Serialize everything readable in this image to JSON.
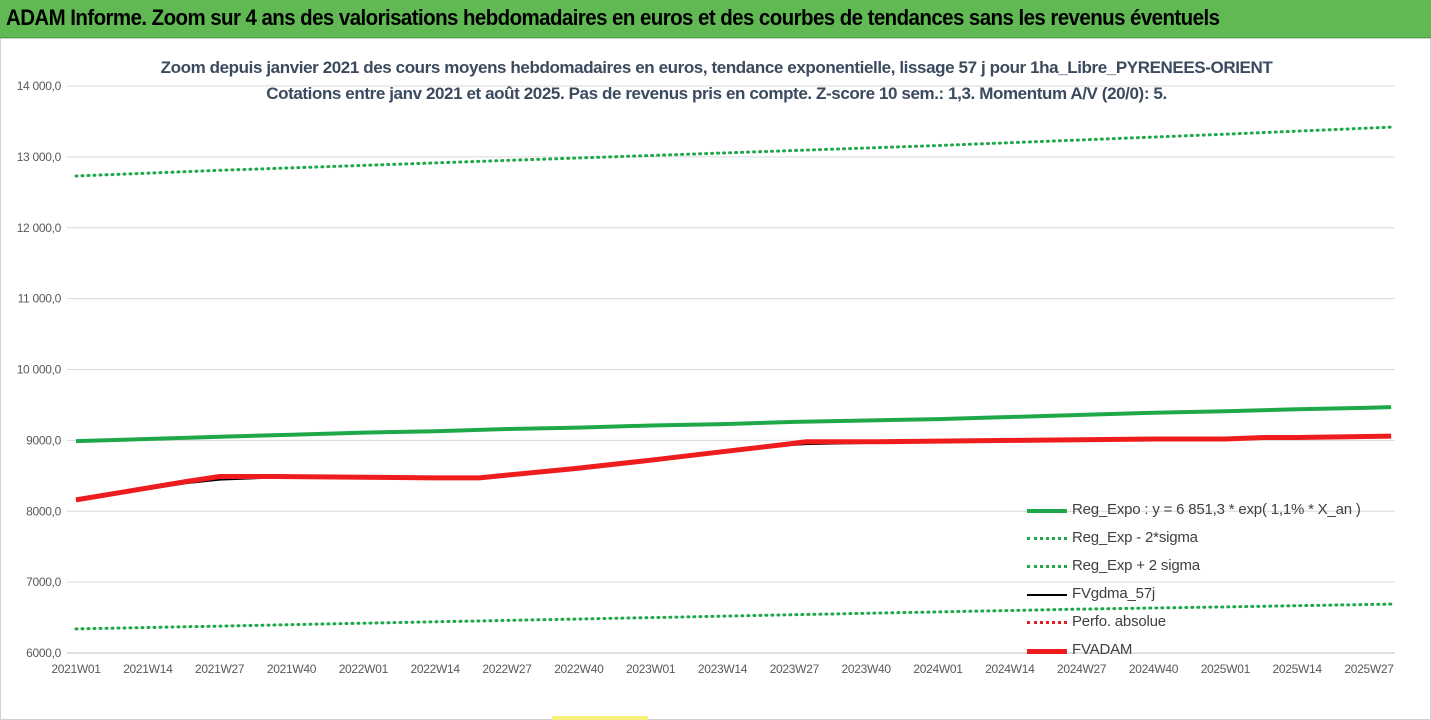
{
  "banner_title": "ADAM Informe. Zoom sur 4 ans des valorisations hebdomadaires en euros et des courbes de tendances sans les revenus éventuels",
  "colors": {
    "banner_bg": "#61b954",
    "trend": "#1fa84a",
    "adam": "#ee1c1c",
    "fvgdma": "#000000",
    "perfo": "#e02020",
    "title_text": "#3b4a5e"
  },
  "chart_data": {
    "type": "line",
    "title": "Zoom depuis janvier 2021 des cours moyens hebdomadaires en euros, tendance exponentielle, lissage 57 j pour 1ha_Libre_PYRENEES-ORIENT",
    "subtitle": "Cotations entre janv 2021 et août 2025.  Pas de revenus pris en compte. Z-score 10 sem.: 1,3. Momentum A/V (20/0): 5.",
    "xlabel": "",
    "ylabel": "",
    "ylim": [
      6000,
      14000
    ],
    "grid": true,
    "legend_position": "right",
    "y_ticks": [
      "6000,0",
      "7000,0",
      "8000,0",
      "9000,0",
      "10 000,0",
      "11 000,0",
      "12 000,0",
      "13 000,0",
      "14 000,0"
    ],
    "x_ticks": [
      "2021W01",
      "2021W14",
      "2021W27",
      "2021W40",
      "2022W01",
      "2022W14",
      "2022W27",
      "2022W40",
      "2023W01",
      "2023W14",
      "2023W27",
      "2023W40",
      "2024W01",
      "2024W14",
      "2024W27",
      "2024W40",
      "2025W01",
      "2025W14",
      "2025W27"
    ],
    "series": [
      {
        "name": "Reg_Expo : y = 6 851,3 * exp( 1,1% *  X_an )",
        "style": "solid-thick",
        "color": "#1fa84a",
        "points": [
          [
            0,
            8990
          ],
          [
            13,
            9020
          ],
          [
            26,
            9050
          ],
          [
            39,
            9080
          ],
          [
            52,
            9110
          ],
          [
            65,
            9130
          ],
          [
            78,
            9160
          ],
          [
            91,
            9180
          ],
          [
            104,
            9210
          ],
          [
            117,
            9230
          ],
          [
            130,
            9260
          ],
          [
            143,
            9280
          ],
          [
            156,
            9300
          ],
          [
            169,
            9330
          ],
          [
            182,
            9360
          ],
          [
            195,
            9390
          ],
          [
            208,
            9410
          ],
          [
            221,
            9440
          ],
          [
            234,
            9460
          ],
          [
            238,
            9470
          ]
        ]
      },
      {
        "name": "Reg_Exp - 2*sigma",
        "style": "dotted",
        "color": "#1fa84a",
        "points": [
          [
            0,
            6340
          ],
          [
            26,
            6380
          ],
          [
            52,
            6420
          ],
          [
            78,
            6460
          ],
          [
            104,
            6500
          ],
          [
            130,
            6540
          ],
          [
            156,
            6580
          ],
          [
            182,
            6620
          ],
          [
            208,
            6650
          ],
          [
            238,
            6690
          ]
        ]
      },
      {
        "name": "Reg_Exp + 2 sigma",
        "style": "dotted",
        "color": "#1fa84a",
        "points": [
          [
            0,
            12730
          ],
          [
            26,
            12810
          ],
          [
            52,
            12880
          ],
          [
            78,
            12950
          ],
          [
            104,
            13020
          ],
          [
            130,
            13090
          ],
          [
            156,
            13160
          ],
          [
            182,
            13240
          ],
          [
            208,
            13320
          ],
          [
            238,
            13420
          ]
        ]
      },
      {
        "name": "FVgdma_57j",
        "style": "solid",
        "color": "#000000",
        "points": [
          [
            0,
            8160
          ],
          [
            10,
            8280
          ],
          [
            20,
            8400
          ],
          [
            26,
            8450
          ],
          [
            36,
            8480
          ],
          [
            52,
            8480
          ],
          [
            65,
            8460
          ],
          [
            73,
            8480
          ],
          [
            78,
            8510
          ],
          [
            90,
            8600
          ],
          [
            104,
            8720
          ],
          [
            117,
            8840
          ],
          [
            128,
            8930
          ],
          [
            132,
            8950
          ],
          [
            145,
            8970
          ],
          [
            156,
            8990
          ],
          [
            169,
            9000
          ],
          [
            182,
            9010
          ],
          [
            195,
            9020
          ],
          [
            208,
            9020
          ],
          [
            221,
            9030
          ],
          [
            238,
            9050
          ]
        ]
      },
      {
        "name": "Perfo. absolue",
        "style": "dotted",
        "color": "#e02020",
        "points": []
      },
      {
        "name": "FVADAM",
        "style": "solid-thick",
        "color": "#ee1c1c",
        "points": [
          [
            0,
            8160
          ],
          [
            10,
            8290
          ],
          [
            20,
            8420
          ],
          [
            26,
            8490
          ],
          [
            36,
            8490
          ],
          [
            52,
            8480
          ],
          [
            65,
            8470
          ],
          [
            73,
            8470
          ],
          [
            78,
            8510
          ],
          [
            90,
            8600
          ],
          [
            104,
            8720
          ],
          [
            117,
            8840
          ],
          [
            128,
            8940
          ],
          [
            132,
            8980
          ],
          [
            145,
            8980
          ],
          [
            156,
            8990
          ],
          [
            169,
            9000
          ],
          [
            182,
            9010
          ],
          [
            195,
            9020
          ],
          [
            208,
            9020
          ],
          [
            215,
            9040
          ],
          [
            221,
            9040
          ],
          [
            238,
            9060
          ]
        ]
      }
    ]
  }
}
